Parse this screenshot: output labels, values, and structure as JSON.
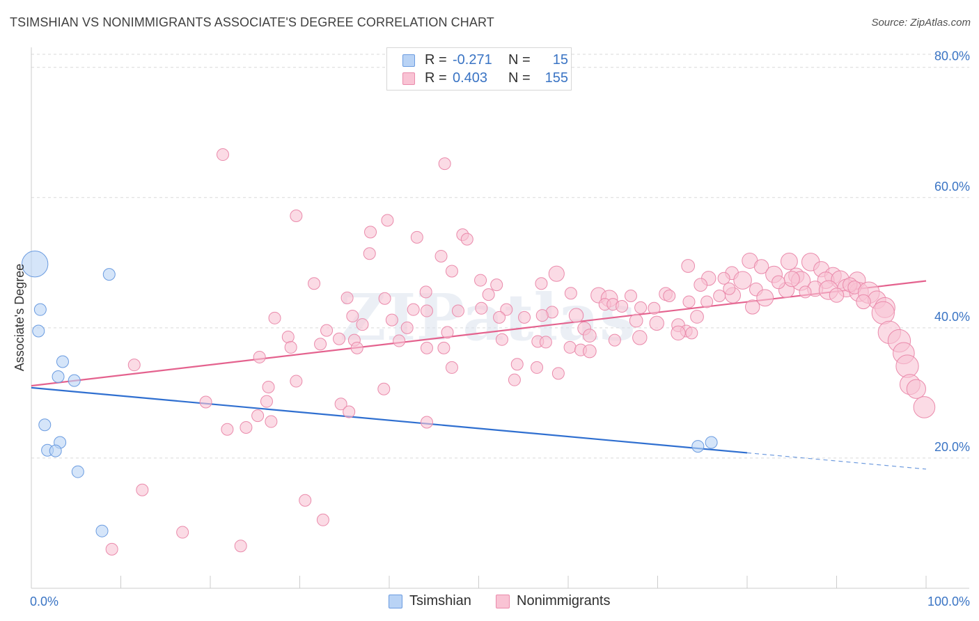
{
  "title": "TSIMSHIAN VS NONIMMIGRANTS ASSOCIATE'S DEGREE CORRELATION CHART",
  "source": "Source: ZipAtlas.com",
  "watermark": "ZIPatlas",
  "legend_top": [
    {
      "r_label": "R =",
      "r_value": "-0.271",
      "n_label": "N =",
      "n_value": "15"
    },
    {
      "r_label": "R =",
      "r_value": "0.403",
      "n_label": "N =",
      "n_value": "155"
    }
  ],
  "colors": {
    "tsimshian_fill": "#b9d3f5",
    "tsimshian_stroke": "#6a9be0",
    "tsimshian_line": "#2f6fd0",
    "nonimm_fill": "#f9c3d4",
    "nonimm_stroke": "#ea8aab",
    "nonimm_line": "#e4628e",
    "tick_label": "#3a74c4",
    "grid": "#d9d9d9",
    "axis": "#cccccc"
  },
  "chart_data": {
    "type": "scatter",
    "title": "TSIMSHIAN VS NONIMMIGRANTS ASSOCIATE'S DEGREE CORRELATION CHART",
    "xlabel": "",
    "ylabel": "Associate's Degree",
    "xlim": [
      0,
      100
    ],
    "ylim": [
      0,
      82
    ],
    "x_tick_labels": [
      "0.0%",
      "100.0%"
    ],
    "y_ticks": [
      20,
      40,
      60,
      80
    ],
    "y_tick_labels": [
      "20.0%",
      "40.0%",
      "60.0%",
      "80.0%"
    ],
    "grid": "horizontal dashed",
    "legend_position": "top-center and bottom",
    "series": [
      {
        "name": "Tsimshian",
        "r": -0.271,
        "n": 15,
        "trend": {
          "x0": 0,
          "y0": 30.8,
          "x1": 80,
          "y1": 20.8,
          "dashed_to_x": 100,
          "dashed_to_y": 18.3
        },
        "points": [
          {
            "x": 0.4,
            "y": 49.8,
            "s": 2.2
          },
          {
            "x": 1.0,
            "y": 42.8,
            "s": 1
          },
          {
            "x": 0.8,
            "y": 39.5,
            "s": 1
          },
          {
            "x": 3.5,
            "y": 34.8,
            "s": 1
          },
          {
            "x": 3.0,
            "y": 32.5,
            "s": 1
          },
          {
            "x": 4.8,
            "y": 31.9,
            "s": 1
          },
          {
            "x": 1.5,
            "y": 25.1,
            "s": 1
          },
          {
            "x": 3.2,
            "y": 22.4,
            "s": 1
          },
          {
            "x": 1.8,
            "y": 21.2,
            "s": 1
          },
          {
            "x": 2.7,
            "y": 21.1,
            "s": 1
          },
          {
            "x": 5.2,
            "y": 17.9,
            "s": 1
          },
          {
            "x": 8.7,
            "y": 48.2,
            "s": 1
          },
          {
            "x": 7.9,
            "y": 8.8,
            "s": 1
          },
          {
            "x": 74.5,
            "y": 21.8,
            "s": 1
          },
          {
            "x": 76.0,
            "y": 22.4,
            "s": 1
          }
        ]
      },
      {
        "name": "Nonimmigrants",
        "r": 0.403,
        "n": 155,
        "trend": {
          "x0": 0,
          "y0": 31.1,
          "x1": 100,
          "y1": 47.2
        },
        "points": [
          {
            "x": 21.4,
            "y": 66.6,
            "s": 1
          },
          {
            "x": 46.2,
            "y": 65.2,
            "s": 1
          },
          {
            "x": 29.6,
            "y": 57.2,
            "s": 1
          },
          {
            "x": 39.8,
            "y": 56.5,
            "s": 1
          },
          {
            "x": 37.9,
            "y": 54.7,
            "s": 1
          },
          {
            "x": 43.1,
            "y": 53.9,
            "s": 1
          },
          {
            "x": 48.2,
            "y": 54.3,
            "s": 1
          },
          {
            "x": 48.7,
            "y": 53.6,
            "s": 1
          },
          {
            "x": 37.8,
            "y": 51.4,
            "s": 1
          },
          {
            "x": 45.8,
            "y": 51.0,
            "s": 1
          },
          {
            "x": 47.0,
            "y": 48.7,
            "s": 1
          },
          {
            "x": 50.2,
            "y": 47.3,
            "s": 1
          },
          {
            "x": 58.7,
            "y": 48.3,
            "s": 1.3
          },
          {
            "x": 31.6,
            "y": 46.8,
            "s": 1
          },
          {
            "x": 52.0,
            "y": 46.6,
            "s": 1
          },
          {
            "x": 57.0,
            "y": 46.8,
            "s": 1
          },
          {
            "x": 44.1,
            "y": 45.5,
            "s": 1
          },
          {
            "x": 35.3,
            "y": 44.6,
            "s": 1
          },
          {
            "x": 39.5,
            "y": 44.5,
            "s": 1
          },
          {
            "x": 51.1,
            "y": 45.1,
            "s": 1
          },
          {
            "x": 60.3,
            "y": 45.3,
            "s": 1
          },
          {
            "x": 63.4,
            "y": 45.0,
            "s": 1.3
          },
          {
            "x": 64.6,
            "y": 44.5,
            "s": 1.4
          },
          {
            "x": 67.0,
            "y": 44.9,
            "s": 1
          },
          {
            "x": 70.9,
            "y": 45.2,
            "s": 1.1
          },
          {
            "x": 64.1,
            "y": 43.6,
            "s": 1
          },
          {
            "x": 65.0,
            "y": 43.6,
            "s": 1
          },
          {
            "x": 66.0,
            "y": 43.3,
            "s": 1
          },
          {
            "x": 68.1,
            "y": 43.1,
            "s": 1
          },
          {
            "x": 69.6,
            "y": 43.0,
            "s": 1
          },
          {
            "x": 42.7,
            "y": 42.8,
            "s": 1
          },
          {
            "x": 44.2,
            "y": 42.6,
            "s": 1
          },
          {
            "x": 47.7,
            "y": 42.6,
            "s": 1
          },
          {
            "x": 50.3,
            "y": 43.0,
            "s": 1
          },
          {
            "x": 53.1,
            "y": 42.8,
            "s": 1
          },
          {
            "x": 58.2,
            "y": 42.4,
            "s": 1
          },
          {
            "x": 35.9,
            "y": 41.8,
            "s": 1
          },
          {
            "x": 27.2,
            "y": 41.5,
            "s": 1
          },
          {
            "x": 52.3,
            "y": 41.6,
            "s": 1
          },
          {
            "x": 55.1,
            "y": 41.6,
            "s": 1
          },
          {
            "x": 57.1,
            "y": 41.9,
            "s": 1
          },
          {
            "x": 60.9,
            "y": 41.9,
            "s": 1.2
          },
          {
            "x": 67.6,
            "y": 41.1,
            "s": 1.1
          },
          {
            "x": 69.9,
            "y": 40.7,
            "s": 1.2
          },
          {
            "x": 37.0,
            "y": 40.5,
            "s": 1
          },
          {
            "x": 40.3,
            "y": 41.2,
            "s": 1
          },
          {
            "x": 42.0,
            "y": 40.0,
            "s": 1
          },
          {
            "x": 46.5,
            "y": 39.3,
            "s": 1
          },
          {
            "x": 61.8,
            "y": 39.9,
            "s": 1.1
          },
          {
            "x": 72.3,
            "y": 40.4,
            "s": 1.1
          },
          {
            "x": 73.2,
            "y": 39.5,
            "s": 1
          },
          {
            "x": 72.3,
            "y": 39.2,
            "s": 1.2
          },
          {
            "x": 73.8,
            "y": 39.2,
            "s": 1
          },
          {
            "x": 33.0,
            "y": 39.6,
            "s": 1
          },
          {
            "x": 34.4,
            "y": 38.3,
            "s": 1
          },
          {
            "x": 28.7,
            "y": 38.6,
            "s": 1
          },
          {
            "x": 36.1,
            "y": 38.1,
            "s": 1
          },
          {
            "x": 41.1,
            "y": 38.0,
            "s": 1
          },
          {
            "x": 52.6,
            "y": 38.2,
            "s": 1
          },
          {
            "x": 56.6,
            "y": 37.9,
            "s": 1
          },
          {
            "x": 57.5,
            "y": 37.8,
            "s": 1
          },
          {
            "x": 62.4,
            "y": 38.8,
            "s": 1.1
          },
          {
            "x": 65.2,
            "y": 38.1,
            "s": 1
          },
          {
            "x": 68.0,
            "y": 38.5,
            "s": 1.2
          },
          {
            "x": 29.0,
            "y": 37.0,
            "s": 1
          },
          {
            "x": 32.3,
            "y": 37.5,
            "s": 1
          },
          {
            "x": 36.4,
            "y": 36.9,
            "s": 1
          },
          {
            "x": 44.2,
            "y": 36.9,
            "s": 1
          },
          {
            "x": 46.1,
            "y": 36.9,
            "s": 1
          },
          {
            "x": 60.2,
            "y": 37.0,
            "s": 1
          },
          {
            "x": 61.4,
            "y": 36.6,
            "s": 1
          },
          {
            "x": 62.4,
            "y": 36.4,
            "s": 1.1
          },
          {
            "x": 25.5,
            "y": 35.5,
            "s": 1
          },
          {
            "x": 54.3,
            "y": 34.4,
            "s": 1
          },
          {
            "x": 11.5,
            "y": 34.3,
            "s": 1
          },
          {
            "x": 47.0,
            "y": 33.9,
            "s": 1
          },
          {
            "x": 56.5,
            "y": 33.9,
            "s": 1
          },
          {
            "x": 58.9,
            "y": 33.0,
            "s": 1
          },
          {
            "x": 29.6,
            "y": 31.8,
            "s": 1
          },
          {
            "x": 54.0,
            "y": 32.0,
            "s": 1
          },
          {
            "x": 26.5,
            "y": 30.9,
            "s": 1
          },
          {
            "x": 39.4,
            "y": 30.6,
            "s": 1
          },
          {
            "x": 26.3,
            "y": 28.7,
            "s": 1
          },
          {
            "x": 19.5,
            "y": 28.6,
            "s": 1
          },
          {
            "x": 34.6,
            "y": 28.3,
            "s": 1
          },
          {
            "x": 35.5,
            "y": 27.1,
            "s": 1
          },
          {
            "x": 25.3,
            "y": 26.5,
            "s": 1
          },
          {
            "x": 26.8,
            "y": 25.6,
            "s": 1
          },
          {
            "x": 24.0,
            "y": 24.7,
            "s": 1
          },
          {
            "x": 21.9,
            "y": 24.4,
            "s": 1
          },
          {
            "x": 44.2,
            "y": 25.5,
            "s": 1
          },
          {
            "x": 12.4,
            "y": 15.1,
            "s": 1
          },
          {
            "x": 30.6,
            "y": 13.5,
            "s": 1
          },
          {
            "x": 32.6,
            "y": 10.5,
            "s": 1
          },
          {
            "x": 16.9,
            "y": 8.6,
            "s": 1
          },
          {
            "x": 23.4,
            "y": 6.5,
            "s": 1
          },
          {
            "x": 9.0,
            "y": 6.0,
            "s": 1
          },
          {
            "x": 80.3,
            "y": 50.3,
            "s": 1.3
          },
          {
            "x": 81.6,
            "y": 49.4,
            "s": 1.2
          },
          {
            "x": 84.7,
            "y": 50.2,
            "s": 1.4
          },
          {
            "x": 87.1,
            "y": 50.1,
            "s": 1.5
          },
          {
            "x": 88.3,
            "y": 49.0,
            "s": 1.3
          },
          {
            "x": 73.4,
            "y": 49.5,
            "s": 1.1
          },
          {
            "x": 78.3,
            "y": 48.4,
            "s": 1.1
          },
          {
            "x": 83.0,
            "y": 48.2,
            "s": 1.4
          },
          {
            "x": 85.5,
            "y": 48.0,
            "s": 1.3
          },
          {
            "x": 89.6,
            "y": 48.0,
            "s": 1.4
          },
          {
            "x": 75.7,
            "y": 47.6,
            "s": 1.2
          },
          {
            "x": 77.4,
            "y": 47.6,
            "s": 1
          },
          {
            "x": 79.5,
            "y": 47.3,
            "s": 1.5
          },
          {
            "x": 86.0,
            "y": 47.2,
            "s": 1.6
          },
          {
            "x": 88.8,
            "y": 47.3,
            "s": 1.4
          },
          {
            "x": 90.4,
            "y": 47.4,
            "s": 1.5
          },
          {
            "x": 92.3,
            "y": 47.3,
            "s": 1.4
          },
          {
            "x": 74.8,
            "y": 46.6,
            "s": 1.1
          },
          {
            "x": 81.0,
            "y": 45.9,
            "s": 1.1
          },
          {
            "x": 84.4,
            "y": 45.8,
            "s": 1.3
          },
          {
            "x": 87.6,
            "y": 46.0,
            "s": 1.3
          },
          {
            "x": 89.1,
            "y": 45.8,
            "s": 1.6
          },
          {
            "x": 91.1,
            "y": 46.1,
            "s": 1.5
          },
          {
            "x": 92.5,
            "y": 45.5,
            "s": 1.6
          },
          {
            "x": 91.5,
            "y": 46.6,
            "s": 1.2
          },
          {
            "x": 92.0,
            "y": 46.2,
            "s": 1.1
          },
          {
            "x": 93.6,
            "y": 45.4,
            "s": 1.8
          },
          {
            "x": 71.3,
            "y": 44.9,
            "s": 1
          },
          {
            "x": 76.9,
            "y": 44.9,
            "s": 1
          },
          {
            "x": 78.4,
            "y": 45.0,
            "s": 1.3
          },
          {
            "x": 82.0,
            "y": 44.6,
            "s": 1.4
          },
          {
            "x": 73.5,
            "y": 44.0,
            "s": 1
          },
          {
            "x": 75.5,
            "y": 44.0,
            "s": 1
          },
          {
            "x": 94.5,
            "y": 44.3,
            "s": 1.5
          },
          {
            "x": 95.4,
            "y": 43.1,
            "s": 1.7
          },
          {
            "x": 80.6,
            "y": 43.2,
            "s": 1.2
          },
          {
            "x": 95.2,
            "y": 42.3,
            "s": 1.9
          },
          {
            "x": 74.4,
            "y": 41.7,
            "s": 1.1
          },
          {
            "x": 95.9,
            "y": 39.3,
            "s": 1.9
          },
          {
            "x": 97.0,
            "y": 38.0,
            "s": 1.9
          },
          {
            "x": 97.5,
            "y": 36.1,
            "s": 1.8
          },
          {
            "x": 97.9,
            "y": 34.1,
            "s": 1.9
          },
          {
            "x": 98.2,
            "y": 31.3,
            "s": 1.7
          },
          {
            "x": 98.9,
            "y": 30.6,
            "s": 1.6
          },
          {
            "x": 99.8,
            "y": 27.8,
            "s": 1.8
          },
          {
            "x": 85.0,
            "y": 47.5,
            "s": 1.3
          },
          {
            "x": 86.5,
            "y": 45.5,
            "s": 1
          },
          {
            "x": 90.0,
            "y": 45.0,
            "s": 1.2
          },
          {
            "x": 78.0,
            "y": 46.0,
            "s": 1
          },
          {
            "x": 83.5,
            "y": 47.0,
            "s": 1.1
          },
          {
            "x": 93.0,
            "y": 44.0,
            "s": 1.2
          }
        ]
      }
    ]
  }
}
